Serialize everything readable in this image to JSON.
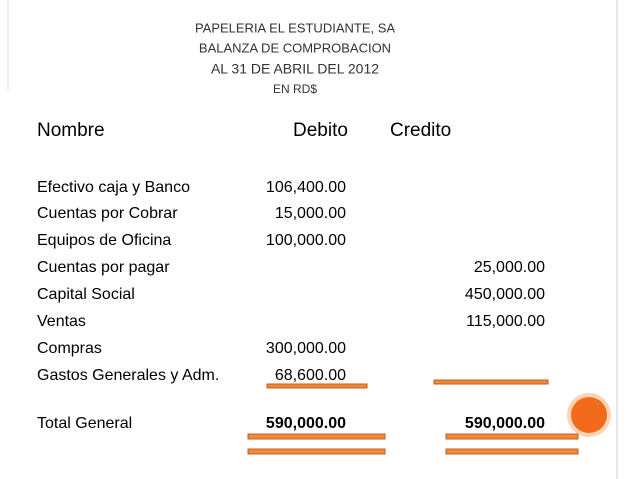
{
  "header": {
    "lines": [
      "PAPELERIA EL ESTUDIANTE, SA",
      "BALANZA DE COMPROBACION",
      "AL 31 DE ABRIL DEL 2012",
      "EN RD$"
    ]
  },
  "table": {
    "columns": [
      "Nombre",
      "Debito",
      "Credito"
    ],
    "rows": [
      {
        "nombre": "Efectivo caja y Banco",
        "debito": "106,400.00"
      },
      {
        "nombre": "Cuentas por Cobrar",
        "debito": "15,000.00"
      },
      {
        "nombre": "Equipos de Oficina",
        "debito": "100,000.00"
      },
      {
        "nombre": "Cuentas por pagar",
        "credito": "25,000.00"
      },
      {
        "nombre": "Capital Social",
        "credito": "450,000.00"
      },
      {
        "nombre": "Ventas",
        "credito": "115,000.00"
      },
      {
        "nombre": "Compras",
        "debito": "300,000.00"
      },
      {
        "nombre": "Gastos Generales y Adm.",
        "debito": "68,600.00"
      }
    ],
    "total": {
      "nombre": "Total General",
      "debito": "590,000.00",
      "credito": "590,000.00"
    }
  }
}
